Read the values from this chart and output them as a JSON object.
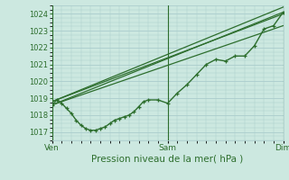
{
  "title": "Pression niveau de la mer( hPa )",
  "background_color": "#cce8e0",
  "grid_color": "#aacccc",
  "line_color": "#2d6e2d",
  "ylim": [
    1016.5,
    1024.5
  ],
  "yticks": [
    1017,
    1018,
    1019,
    1020,
    1021,
    1022,
    1023,
    1024
  ],
  "xtick_labels": [
    "Ven",
    "Sam",
    "Dim"
  ],
  "xtick_positions": [
    0,
    48,
    96
  ],
  "series1_x": [
    0,
    2,
    4,
    6,
    8,
    10,
    12,
    14,
    16,
    18,
    20,
    22,
    24,
    26,
    28,
    30,
    32,
    34,
    36,
    38,
    40,
    44,
    48,
    52,
    56,
    60,
    64,
    68,
    72,
    76,
    80,
    84,
    88,
    92,
    96
  ],
  "series1_y": [
    1018.6,
    1018.9,
    1018.7,
    1018.4,
    1018.1,
    1017.7,
    1017.4,
    1017.2,
    1017.1,
    1017.1,
    1017.2,
    1017.3,
    1017.5,
    1017.7,
    1017.8,
    1017.9,
    1018.0,
    1018.2,
    1018.5,
    1018.8,
    1018.9,
    1018.9,
    1018.7,
    1019.3,
    1019.8,
    1020.4,
    1021.0,
    1021.3,
    1021.2,
    1021.5,
    1021.5,
    1022.1,
    1023.1,
    1023.3,
    1024.1
  ],
  "series2_x": [
    0,
    96
  ],
  "series2_y": [
    1018.6,
    1024.1
  ],
  "series3_x": [
    0,
    96
  ],
  "series3_y": [
    1018.6,
    1023.3
  ],
  "series4_x": [
    0,
    96
  ],
  "series4_y": [
    1018.8,
    1024.4
  ],
  "series5_x": [
    0,
    96
  ],
  "series5_y": [
    1018.8,
    1024.0
  ]
}
